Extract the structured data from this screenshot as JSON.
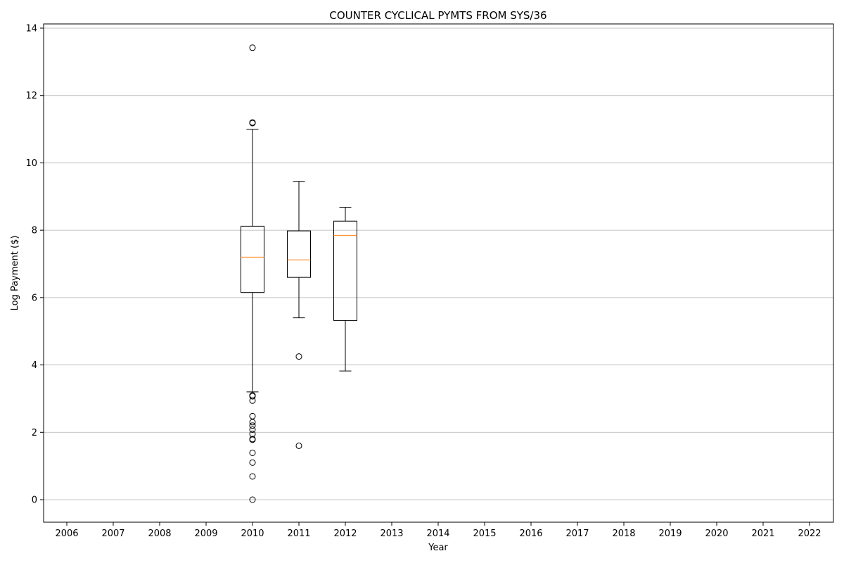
{
  "chart_data": {
    "type": "boxplot",
    "title": "COUNTER CYCLICAL PYMTS FROM SYS/36",
    "xlabel": "Year",
    "ylabel": "Log Payment ($)",
    "categories": [
      "2006",
      "2007",
      "2008",
      "2009",
      "2010",
      "2011",
      "2012",
      "2013",
      "2014",
      "2015",
      "2016",
      "2017",
      "2018",
      "2019",
      "2020",
      "2021",
      "2022"
    ],
    "yticks": [
      0,
      2,
      4,
      6,
      8,
      10,
      12,
      14
    ],
    "ylim": [
      -0.67,
      14.1
    ],
    "grid": "y",
    "boxes": [
      {
        "category": "2010",
        "whisker_low": 3.2,
        "q1": 6.15,
        "median": 7.2,
        "q3": 8.12,
        "whisker_high": 11.0,
        "outliers": [
          13.42,
          11.2,
          11.18,
          3.1,
          3.07,
          2.94,
          2.48,
          2.3,
          2.2,
          2.08,
          1.95,
          1.8,
          1.78,
          1.39,
          1.1,
          0.69,
          0.0
        ]
      },
      {
        "category": "2011",
        "whisker_low": 5.4,
        "q1": 6.6,
        "median": 7.12,
        "q3": 7.98,
        "whisker_high": 9.45,
        "outliers": [
          4.25,
          1.6
        ]
      },
      {
        "category": "2012",
        "whisker_low": 3.82,
        "q1": 5.32,
        "median": 7.85,
        "q3": 8.27,
        "whisker_high": 8.68,
        "outliers": []
      }
    ],
    "colors": {
      "box": "#000000",
      "median": "#ff7f0e",
      "grid": "#b0b0b0"
    }
  }
}
